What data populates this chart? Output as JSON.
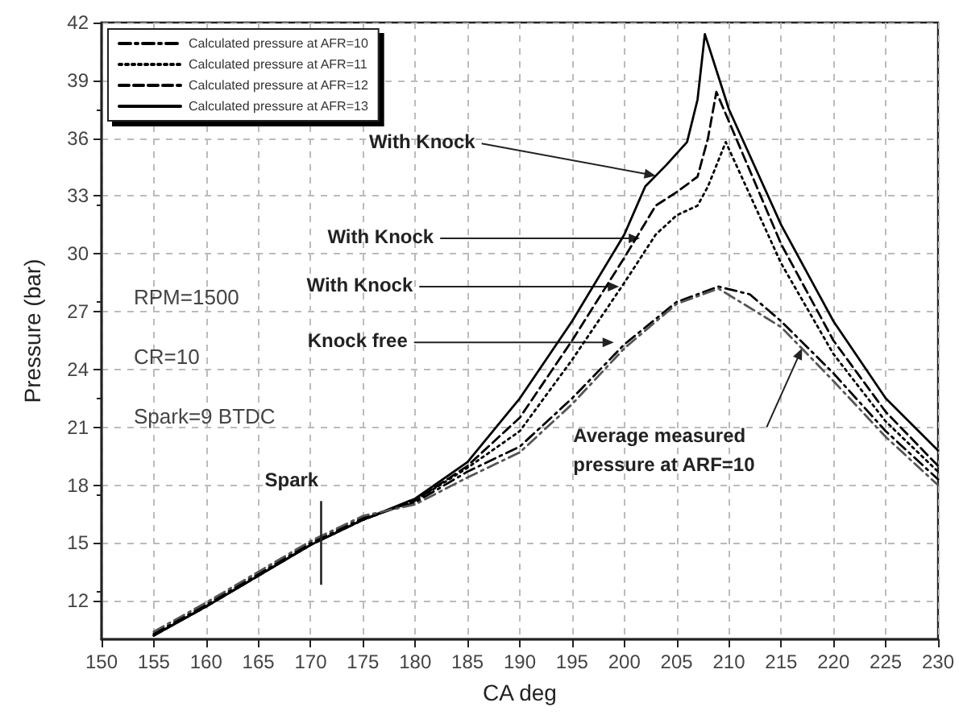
{
  "chart_data": {
    "type": "line",
    "xlabel": "CA deg",
    "ylabel": "Pressure (bar)",
    "xlim": [
      150,
      230
    ],
    "xticks": [
      150,
      155,
      160,
      165,
      170,
      175,
      180,
      185,
      190,
      195,
      200,
      205,
      210,
      215,
      220,
      225,
      230
    ],
    "ylim": [
      10,
      42
    ],
    "yticks": [
      12,
      15,
      18,
      21,
      24,
      27,
      30,
      33,
      36,
      39,
      42
    ],
    "grid": true,
    "legend": "top left",
    "marker": "none",
    "series": [
      {
        "name": "Calculated pressure at AFR=10",
        "color": "#000000",
        "line_style": "dashdot",
        "x": [
          155,
          160,
          165,
          170,
          175,
          180,
          185,
          190,
          195,
          200,
          205,
          209,
          212,
          215,
          220,
          225,
          230
        ],
        "values": [
          10.3,
          11.8,
          13.4,
          15.0,
          16.3,
          17.1,
          18.7,
          20.0,
          22.5,
          25.3,
          27.5,
          28.3,
          27.9,
          26.5,
          23.8,
          20.8,
          18.3
        ]
      },
      {
        "name": "Calculated pressure at AFR=11",
        "color": "#000000",
        "line_style": "dotted",
        "x": [
          155,
          160,
          165,
          170,
          175,
          180,
          185,
          190,
          195,
          200,
          203,
          205,
          207,
          208,
          209.7,
          215,
          220,
          225,
          230
        ],
        "values": [
          10.2,
          11.7,
          13.3,
          14.9,
          16.2,
          17.2,
          18.9,
          20.8,
          24.5,
          28.5,
          31.0,
          32.0,
          32.5,
          33.5,
          35.8,
          29.5,
          24.8,
          21.3,
          18.7
        ]
      },
      {
        "name": "Calculated pressure at AFR=12",
        "color": "#000000",
        "line_style": "dashed",
        "x": [
          155,
          160,
          165,
          170,
          175,
          180,
          185,
          190,
          195,
          200,
          203,
          205,
          207,
          208,
          208.8,
          215,
          220,
          225,
          230
        ],
        "values": [
          10.2,
          11.7,
          13.3,
          14.9,
          16.2,
          17.2,
          19.0,
          21.5,
          25.5,
          29.8,
          32.5,
          33.2,
          34.0,
          36.0,
          38.4,
          30.5,
          25.5,
          21.8,
          19.0
        ]
      },
      {
        "name": "Calculated pressure at AFR=13",
        "color": "#000000",
        "line_style": "solid",
        "x": [
          155,
          160,
          165,
          170,
          175,
          180,
          185,
          190,
          195,
          200,
          202,
          204,
          206,
          207,
          207.7,
          210,
          215,
          220,
          225,
          230
        ],
        "values": [
          10.2,
          11.7,
          13.3,
          14.9,
          16.2,
          17.3,
          19.2,
          22.5,
          26.5,
          31.0,
          33.5,
          34.6,
          35.8,
          38.0,
          41.4,
          37.5,
          31.5,
          26.5,
          22.5,
          19.8
        ]
      },
      {
        "color": "#555555",
        "line_style": "dashdot",
        "x": [
          155,
          160,
          165,
          170,
          175,
          180,
          185,
          190,
          195,
          200,
          205,
          209,
          215,
          220,
          225,
          230
        ],
        "values": [
          10.4,
          11.9,
          13.5,
          15.1,
          16.4,
          17.0,
          18.4,
          19.7,
          22.2,
          25.1,
          27.4,
          28.2,
          26.2,
          23.4,
          20.5,
          18.0
        ]
      }
    ],
    "annotations": [
      "RPM=1500",
      "CR=10",
      "Spark=9 BTDC",
      {
        "text": "Spark",
        "x": 171,
        "y": 15
      },
      {
        "text": "With Knock",
        "x": 203,
        "y": 34.05
      },
      {
        "text": "With Knock",
        "x": 201.5,
        "y": 30.8
      },
      {
        "text": "With Knock",
        "x": 199.5,
        "y": 28.3
      },
      {
        "text": "Knock free",
        "x": 199,
        "y": 25.4
      },
      {
        "text": "Average measured\npressure at ARF=10",
        "x": 217,
        "y": 25.1
      }
    ]
  }
}
